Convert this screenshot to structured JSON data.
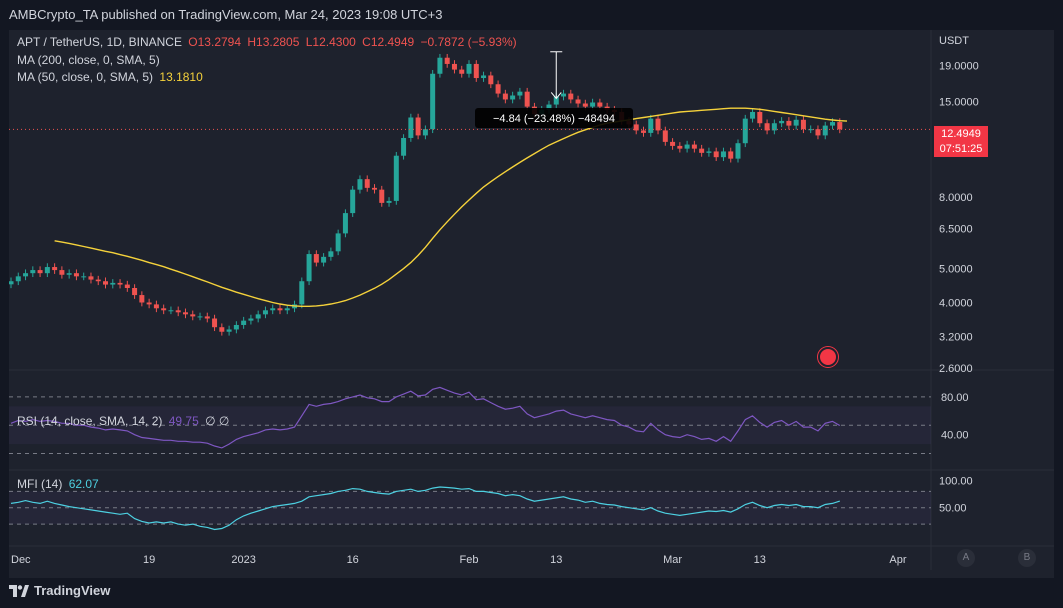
{
  "header": {
    "publisher_line": "AMBCrypto_TA published on TradingView.com, Mar 24, 2023 19:08 UTC+3"
  },
  "legend": {
    "symbol": "APT / TetherUS, 1D, BINANCE",
    "open": "O13.2794",
    "high": "H13.2805",
    "low": "L12.4300",
    "close": "C12.4949",
    "change": "−0.7872 (−5.93%)",
    "ma200": "MA (200, close, 0, SMA, 5)",
    "ma50": "MA (50, close, 0, SMA, 5)",
    "ma50_value": "13.1810",
    "rsi_label": "RSI (14, close, SMA, 14, 2)",
    "rsi_value": "49.75",
    "rsi_extra": "∅ ∅",
    "mfi_label": "MFI (14)",
    "mfi_value": "62.07"
  },
  "price_axis": {
    "currency": "USDT",
    "ticks": [
      "19.0000",
      "15.0000",
      "8.0000",
      "6.5000",
      "5.0000",
      "4.0000",
      "3.2000",
      "2.6000"
    ],
    "last_price": "12.4949",
    "countdown": "07:51:25"
  },
  "rsi_axis": {
    "ticks": [
      "80.00",
      "40.00"
    ]
  },
  "mfi_axis": {
    "ticks": [
      "100.00",
      "50.00"
    ]
  },
  "time_axis": {
    "ticks": [
      "Dec",
      "19",
      "2023",
      "16",
      "Feb",
      "13",
      "Mar",
      "13",
      "Apr"
    ]
  },
  "measure_label": "−4.84 (−23.48%) −48494",
  "footer": {
    "brand": "TradingView",
    "btn_a": "A",
    "btn_b": "B"
  },
  "colors": {
    "up": "#26a69a",
    "down": "#ef5350",
    "ma": "#f5d23b",
    "rsi": "#7e57c2",
    "mfi": "#4dd0e1",
    "bg": "#131722"
  },
  "chart_data": {
    "type": "candlestick",
    "title": "APT / TetherUS, 1D, BINANCE",
    "ylabel": "USDT",
    "y_scale": "log",
    "ylim": [
      2.6,
      24.0
    ],
    "x_ticks": [
      {
        "label": "Dec",
        "day": 0
      },
      {
        "label": "19",
        "day": 19
      },
      {
        "label": "2023",
        "day": 32
      },
      {
        "label": "16",
        "day": 47
      },
      {
        "label": "Feb",
        "day": 63
      },
      {
        "label": "13",
        "day": 75
      },
      {
        "label": "Mar",
        "day": 91
      },
      {
        "label": "13",
        "day": 103
      },
      {
        "label": "Apr",
        "day": 122
      }
    ],
    "close": [
      4.6,
      4.75,
      4.85,
      4.95,
      4.85,
      5.05,
      4.95,
      4.8,
      4.85,
      4.75,
      4.75,
      4.65,
      4.6,
      4.5,
      4.55,
      4.5,
      4.4,
      4.2,
      4.0,
      3.95,
      3.85,
      3.8,
      3.8,
      3.75,
      3.7,
      3.65,
      3.65,
      3.6,
      3.4,
      3.3,
      3.35,
      3.45,
      3.55,
      3.6,
      3.7,
      3.8,
      3.85,
      3.8,
      3.85,
      3.95,
      4.6,
      5.5,
      5.2,
      5.4,
      5.6,
      6.3,
      7.2,
      8.4,
      9.0,
      8.5,
      8.4,
      7.7,
      7.8,
      10.5,
      11.8,
      13.5,
      12.0,
      12.5,
      18.0,
      20.0,
      19.2,
      18.5,
      18.0,
      19.2,
      17.5,
      17.8,
      16.8,
      15.8,
      15.2,
      15.6,
      16.0,
      14.5,
      13.8,
      14.2,
      14.7,
      15.5,
      15.8,
      15.2,
      14.8,
      14.5,
      14.9,
      14.5,
      14.2,
      14.0,
      13.2,
      12.9,
      12.4,
      12.2,
      13.4,
      12.4,
      11.5,
      11.2,
      11.0,
      11.3,
      11.0,
      10.7,
      10.8,
      10.4,
      10.8,
      10.3,
      11.4,
      13.4,
      14.0,
      13.0,
      12.4,
      13.0,
      13.2,
      12.8,
      13.3,
      12.5,
      12.5,
      12.0,
      12.8,
      13.1,
      12.49
    ],
    "ma50": [
      6.0,
      5.95,
      5.9,
      5.84,
      5.78,
      5.72,
      5.66,
      5.6,
      5.55,
      5.48,
      5.42,
      5.35,
      5.28,
      5.2,
      5.13,
      5.06,
      4.98,
      4.9,
      4.82,
      4.74,
      4.66,
      4.58,
      4.5,
      4.42,
      4.35,
      4.28,
      4.22,
      4.16,
      4.1,
      4.05,
      4.0,
      3.96,
      3.93,
      3.91,
      3.9,
      3.9,
      3.91,
      3.93,
      3.96,
      4.0,
      4.05,
      4.12,
      4.2,
      4.29,
      4.39,
      4.51,
      4.65,
      4.82,
      5.0,
      5.2,
      5.45,
      5.75,
      6.1,
      6.45,
      6.8,
      7.15,
      7.5,
      7.85,
      8.2,
      8.55,
      8.85,
      9.15,
      9.45,
      9.75,
      10.05,
      10.35,
      10.65,
      10.95,
      11.25,
      11.5,
      11.75,
      12.0,
      12.25,
      12.45,
      12.65,
      12.85,
      13.0,
      13.1,
      13.2,
      13.3,
      13.4,
      13.5,
      13.6,
      13.7,
      13.8,
      13.9,
      14.0,
      14.05,
      14.1,
      14.15,
      14.2,
      14.25,
      14.3,
      14.35,
      14.35,
      14.35,
      14.3,
      14.25,
      14.15,
      14.05,
      13.95,
      13.85,
      13.75,
      13.65,
      13.55,
      13.45,
      13.35,
      13.28,
      13.22,
      13.18
    ],
    "rsi": [
      52,
      55,
      54,
      56,
      54,
      55,
      54,
      52,
      52,
      50,
      50,
      48,
      47,
      45,
      46,
      45,
      44,
      40,
      37,
      36,
      35,
      34,
      34,
      33,
      33,
      32,
      32,
      31,
      28,
      26,
      30,
      35,
      38,
      40,
      42,
      45,
      46,
      45,
      46,
      48,
      60,
      72,
      70,
      72,
      73,
      75,
      78,
      80,
      82,
      79,
      78,
      75,
      75,
      80,
      83,
      86,
      81,
      82,
      88,
      90,
      87,
      84,
      82,
      85,
      77,
      78,
      74,
      70,
      67,
      68,
      70,
      62,
      58,
      60,
      62,
      65,
      66,
      62,
      60,
      58,
      60,
      58,
      56,
      55,
      50,
      48,
      44,
      43,
      52,
      45,
      40,
      38,
      37,
      40,
      38,
      35,
      36,
      33,
      38,
      33,
      44,
      56,
      60,
      53,
      48,
      53,
      55,
      50,
      54,
      48,
      48,
      44,
      52,
      54,
      49.75
    ],
    "rsi_bands": [
      80,
      70,
      50,
      30,
      20
    ],
    "mfi": [
      58,
      60,
      63,
      60,
      58,
      62,
      58,
      55,
      52,
      50,
      48,
      46,
      44,
      42,
      40,
      38,
      40,
      30,
      25,
      22,
      24,
      22,
      24,
      20,
      18,
      20,
      16,
      14,
      10,
      12,
      18,
      28,
      35,
      40,
      44,
      48,
      52,
      54,
      56,
      58,
      62,
      70,
      72,
      74,
      76,
      80,
      82,
      85,
      84,
      80,
      78,
      76,
      75,
      80,
      82,
      84,
      80,
      82,
      86,
      88,
      87,
      86,
      84,
      85,
      80,
      80,
      78,
      76,
      72,
      74,
      72,
      66,
      62,
      64,
      66,
      68,
      70,
      66,
      64,
      60,
      62,
      58,
      56,
      55,
      52,
      50,
      48,
      46,
      50,
      44,
      40,
      38,
      36,
      38,
      40,
      42,
      44,
      43,
      45,
      42,
      48,
      56,
      60,
      54,
      50,
      54,
      56,
      54,
      56,
      52,
      52,
      50,
      56,
      58,
      62.07
    ],
    "mfi_bands": [
      80,
      50,
      20
    ]
  }
}
